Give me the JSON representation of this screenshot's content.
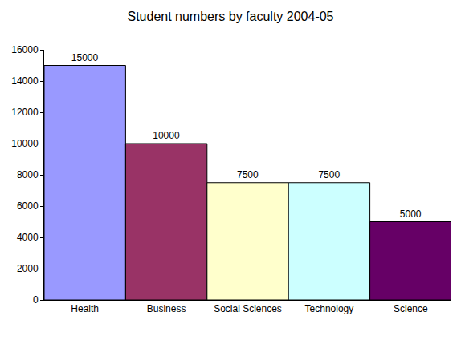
{
  "chart_data": {
    "type": "bar",
    "title": "Student numbers by faculty 2004-05",
    "categories": [
      "Health",
      "Business",
      "Social Sciences",
      "Technology",
      "Science"
    ],
    "values": [
      15000,
      10000,
      7500,
      7500,
      5000
    ],
    "colors": [
      "#9999ff",
      "#993366",
      "#ffffcc",
      "#ccffff",
      "#660066"
    ],
    "ylim": [
      0,
      16000
    ],
    "yticks": [
      0,
      2000,
      4000,
      6000,
      8000,
      10000,
      12000,
      14000,
      16000
    ],
    "grid": false,
    "data_labels": true
  }
}
